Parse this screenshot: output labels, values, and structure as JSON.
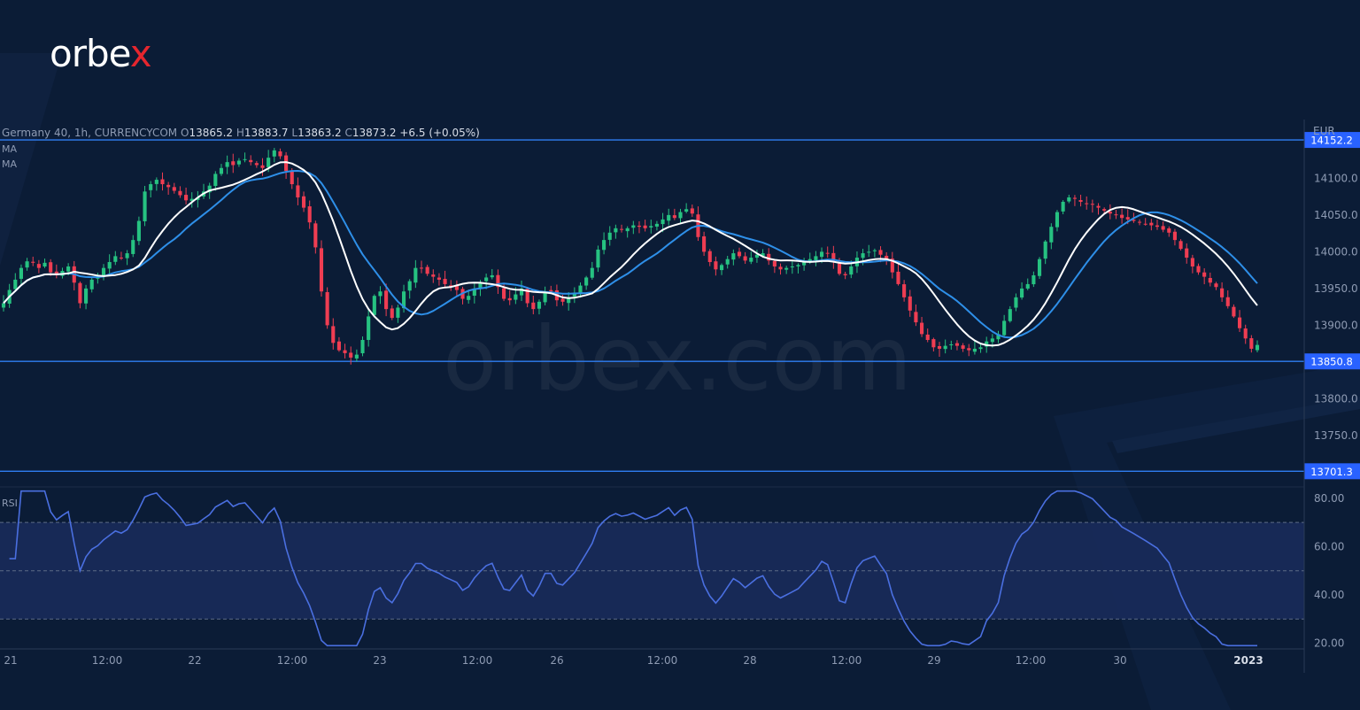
{
  "logo": {
    "text_main": "orbe",
    "text_x": "x"
  },
  "watermark": "orbex.com",
  "header": {
    "symbol": "Germany 40, 1h, CURRENCYCOM",
    "o_label": "O",
    "o_value": "13865.2",
    "h_label": "H",
    "h_value": "13883.7",
    "l_label": "L",
    "l_value": "13863.2",
    "c_label": "C",
    "c_value": "13873.2",
    "change": "+6.5 (+0.05%)",
    "ma1": "MA",
    "ma2": "MA",
    "rsi": "RSI"
  },
  "currency": "EUR",
  "colors": {
    "background": "#0b1c36",
    "up": "#26c281",
    "down": "#ef3d52",
    "ma_fast": "#ffffff",
    "ma_slow": "#2e8fe8",
    "level_line": "#2f7ef2",
    "rsi_line": "#4a6fe0",
    "rsi_band": "#1a2c5c"
  },
  "chart_data": [
    {
      "type": "candlestick",
      "symbol": "Germany 40",
      "interval": "1h",
      "x_ticks": [
        "21",
        "12:00",
        "22",
        "12:00",
        "23",
        "12:00",
        "26",
        "12:00",
        "28",
        "12:00",
        "29",
        "12:00",
        "30",
        "2023"
      ],
      "ylim": [
        13680,
        14180
      ],
      "y_ticks": [
        "14100.0",
        "14050.0",
        "14000.0",
        "13950.0",
        "13900.0",
        "13800.0",
        "13750.0"
      ],
      "horizontal_levels": [
        "14152.2",
        "13850.8",
        "13701.3"
      ],
      "closes": [
        13930,
        13948,
        13962,
        13978,
        13987,
        13985,
        13978,
        13985,
        13972,
        13968,
        13974,
        13980,
        13958,
        13930,
        13950,
        13962,
        13968,
        13978,
        13986,
        13994,
        13992,
        13998,
        14016,
        14042,
        14082,
        14092,
        14098,
        14092,
        14088,
        14083,
        14077,
        14070,
        14072,
        14074,
        14082,
        14090,
        14106,
        14114,
        14122,
        14118,
        14124,
        14126,
        14122,
        14118,
        14114,
        14128,
        14138,
        14130,
        14110,
        14092,
        14074,
        14060,
        14040,
        14006,
        13946,
        13900,
        13876,
        13866,
        13862,
        13856,
        13860,
        13880,
        13912,
        13940,
        13946,
        13922,
        13910,
        13924,
        13946,
        13960,
        13978,
        13978,
        13970,
        13966,
        13962,
        13956,
        13952,
        13948,
        13936,
        13940,
        13950,
        13958,
        13965,
        13968,
        13952,
        13936,
        13934,
        13942,
        13950,
        13930,
        13922,
        13932,
        13946,
        13946,
        13934,
        13932,
        13938,
        13944,
        13954,
        13965,
        13978,
        14003,
        14016,
        14026,
        14032,
        14030,
        14032,
        14036,
        14034,
        14032,
        14035,
        14038,
        14044,
        14050,
        14046,
        14054,
        14058,
        14052,
        14020,
        14000,
        13986,
        13976,
        13982,
        13990,
        13998,
        13994,
        13988,
        13992,
        13996,
        13998,
        13988,
        13980,
        13976,
        13978,
        13980,
        13982,
        13986,
        13990,
        13994,
        14000,
        13998,
        13986,
        13970,
        13968,
        13980,
        13992,
        13998,
        14000,
        14002,
        13996,
        13990,
        13972,
        13956,
        13938,
        13920,
        13904,
        13888,
        13880,
        13870,
        13868,
        13872,
        13874,
        13872,
        13868,
        13866,
        13868,
        13870,
        13878,
        13882,
        13888,
        13906,
        13922,
        13938,
        13950,
        13956,
        13968,
        13990,
        14014,
        14034,
        14054,
        14068,
        14074,
        14072,
        14068,
        14066,
        14064,
        14060,
        14056,
        14052,
        14050,
        14046,
        14044,
        14042,
        14040,
        14038,
        14036,
        14034,
        14030,
        14026,
        14016,
        14004,
        13992,
        13980,
        13972,
        13966,
        13958,
        13952,
        13938,
        13926,
        13912,
        13896,
        13882,
        13868,
        13873.2
      ]
    },
    {
      "type": "line",
      "name": "RSI",
      "ylim": [
        18,
        84
      ],
      "y_ticks": [
        "80.00",
        "60.00",
        "40.00",
        "20.00"
      ],
      "band": [
        30,
        70
      ],
      "mid": 50
    }
  ]
}
